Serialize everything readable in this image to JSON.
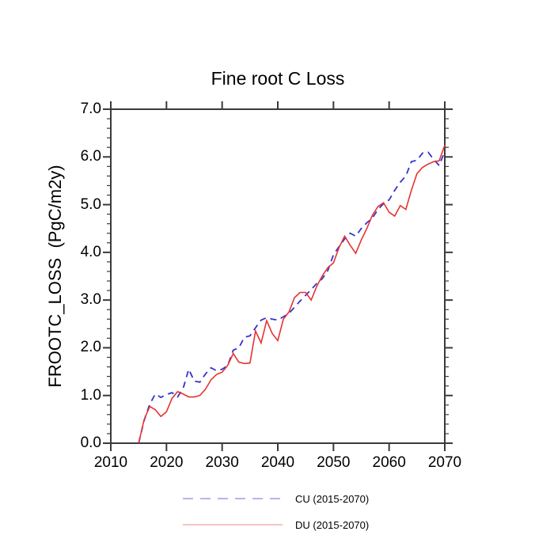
{
  "chart_data": {
    "type": "line",
    "title": "Fine root C Loss",
    "xlabel": "",
    "ylabel": "FROOTC_LOSS  (PgC/m2y)",
    "xlim": [
      2010,
      2070
    ],
    "ylim": [
      0.0,
      7.0
    ],
    "grid": false,
    "frame_box": true,
    "ticks_direction": "outward",
    "x_tick_labels": [
      "2010",
      "2020",
      "2030",
      "2040",
      "2050",
      "2060",
      "2070"
    ],
    "y_tick_labels": [
      "0.0",
      "1.0",
      "2.0",
      "3.0",
      "4.0",
      "5.0",
      "6.0",
      "7.0"
    ],
    "y_minor_tick_step": 0.2,
    "legend_position": "bottom-center",
    "axis_color": "#3a3a3a",
    "text_color": "#000000",
    "background_color": "#ffffff",
    "x": [
      2015,
      2016,
      2017,
      2018,
      2019,
      2020,
      2021,
      2022,
      2023,
      2024,
      2025,
      2026,
      2027,
      2028,
      2029,
      2030,
      2031,
      2032,
      2033,
      2034,
      2035,
      2036,
      2037,
      2038,
      2039,
      2040,
      2041,
      2042,
      2043,
      2044,
      2045,
      2046,
      2047,
      2048,
      2049,
      2050,
      2051,
      2052,
      2053,
      2054,
      2055,
      2056,
      2057,
      2058,
      2059,
      2060,
      2061,
      2062,
      2063,
      2064,
      2065,
      2066,
      2067,
      2068,
      2069,
      2070
    ],
    "series": [
      {
        "id": "CU",
        "label": "CU (2015-2070)",
        "style": "dashed",
        "color": "#3434c8",
        "legend_color": "#8a8ae0",
        "values": [
          0.0,
          0.48,
          0.82,
          1.03,
          0.96,
          1.02,
          1.06,
          0.97,
          1.15,
          1.55,
          1.3,
          1.28,
          1.45,
          1.58,
          1.52,
          1.55,
          1.63,
          1.95,
          2.0,
          2.22,
          2.25,
          2.42,
          2.58,
          2.63,
          2.6,
          2.58,
          2.65,
          2.72,
          2.85,
          2.98,
          3.1,
          3.22,
          3.35,
          3.45,
          3.62,
          3.95,
          4.12,
          4.28,
          4.4,
          4.34,
          4.5,
          4.62,
          4.72,
          4.9,
          5.02,
          5.1,
          5.3,
          5.47,
          5.6,
          5.9,
          5.93,
          6.08,
          6.1,
          5.95,
          5.82,
          6.12
        ]
      },
      {
        "id": "DU",
        "label": "DU (2015-2070)",
        "style": "solid",
        "color": "#e63232",
        "legend_color": "#f0a0a0",
        "values": [
          0.0,
          0.5,
          0.77,
          0.7,
          0.56,
          0.66,
          0.94,
          1.08,
          1.03,
          0.97,
          0.97,
          1.0,
          1.13,
          1.33,
          1.44,
          1.49,
          1.63,
          1.88,
          1.7,
          1.67,
          1.68,
          2.35,
          2.1,
          2.57,
          2.3,
          2.15,
          2.6,
          2.75,
          3.05,
          3.16,
          3.16,
          3.0,
          3.29,
          3.51,
          3.68,
          3.78,
          4.1,
          4.34,
          4.15,
          3.98,
          4.26,
          4.5,
          4.78,
          4.96,
          5.04,
          4.84,
          4.76,
          4.98,
          4.9,
          5.3,
          5.65,
          5.78,
          5.85,
          5.9,
          5.92,
          6.25
        ]
      }
    ]
  }
}
